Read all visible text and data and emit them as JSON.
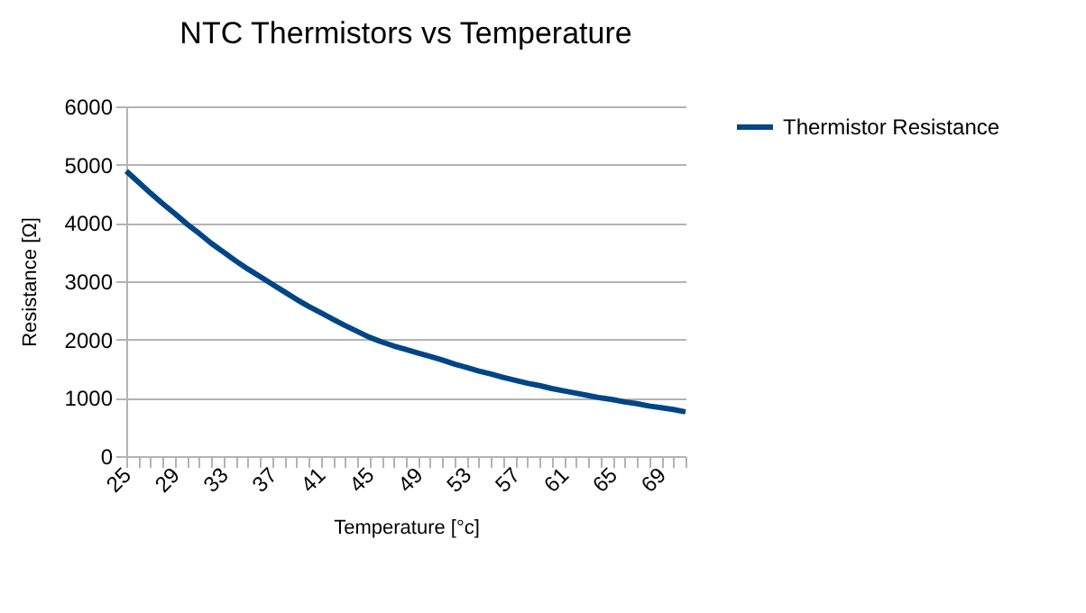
{
  "chart_data": {
    "type": "line",
    "title": "NTC Thermistors vs Temperature",
    "xlabel": "Temperature [°c]",
    "ylabel": "Resistance [Ω]",
    "categories": [
      "25",
      null,
      null,
      null,
      "29",
      null,
      null,
      null,
      "33",
      null,
      null,
      null,
      "37",
      null,
      null,
      null,
      "41",
      null,
      null,
      null,
      "45",
      null,
      null,
      null,
      "49",
      null,
      null,
      null,
      "53",
      null,
      null,
      null,
      "57",
      null,
      null,
      null,
      "61",
      null,
      null,
      null,
      "65",
      null,
      null,
      null,
      "69",
      null,
      null
    ],
    "series": [
      {
        "name": "Thermistor Resistance",
        "color": "#004586",
        "values": [
          4890,
          4700,
          4510,
          4330,
          4160,
          3980,
          3820,
          3650,
          3500,
          3350,
          3210,
          3080,
          2950,
          2820,
          2690,
          2570,
          2460,
          2350,
          2240,
          2140,
          2040,
          1960,
          1890,
          1830,
          1770,
          1710,
          1650,
          1580,
          1520,
          1460,
          1410,
          1350,
          1300,
          1250,
          1210,
          1160,
          1120,
          1080,
          1040,
          1000,
          970,
          930,
          900,
          860,
          830,
          800,
          760
        ]
      }
    ],
    "ylim": [
      0,
      6000
    ],
    "yticks": [
      0,
      1000,
      2000,
      3000,
      4000,
      5000,
      6000
    ],
    "grid": "y",
    "legend": "right",
    "marker": "none",
    "line_style": "solid"
  }
}
